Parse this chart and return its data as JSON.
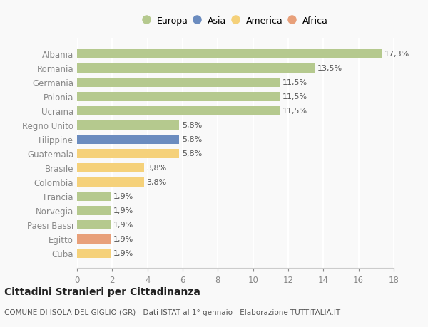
{
  "categories": [
    "Albania",
    "Romania",
    "Germania",
    "Polonia",
    "Ucraina",
    "Regno Unito",
    "Filippine",
    "Guatemala",
    "Brasile",
    "Colombia",
    "Francia",
    "Norvegia",
    "Paesi Bassi",
    "Egitto",
    "Cuba"
  ],
  "values": [
    17.3,
    13.5,
    11.5,
    11.5,
    11.5,
    5.8,
    5.8,
    5.8,
    3.8,
    3.8,
    1.9,
    1.9,
    1.9,
    1.9,
    1.9
  ],
  "labels": [
    "17,3%",
    "13,5%",
    "11,5%",
    "11,5%",
    "11,5%",
    "5,8%",
    "5,8%",
    "5,8%",
    "3,8%",
    "3,8%",
    "1,9%",
    "1,9%",
    "1,9%",
    "1,9%",
    "1,9%"
  ],
  "continent": [
    "Europa",
    "Europa",
    "Europa",
    "Europa",
    "Europa",
    "Europa",
    "Asia",
    "America",
    "America",
    "America",
    "Europa",
    "Europa",
    "Europa",
    "Africa",
    "America"
  ],
  "colors": {
    "Europa": "#b5c98e",
    "Asia": "#6b8cbf",
    "America": "#f5d17a",
    "Africa": "#e8a07a"
  },
  "legend_order": [
    "Europa",
    "Asia",
    "America",
    "Africa"
  ],
  "title": "Cittadini Stranieri per Cittadinanza",
  "subtitle": "COMUNE DI ISOLA DEL GIGLIO (GR) - Dati ISTAT al 1° gennaio - Elaborazione TUTTITALIA.IT",
  "xlim": [
    0,
    18
  ],
  "xticks": [
    0,
    2,
    4,
    6,
    8,
    10,
    12,
    14,
    16,
    18
  ],
  "background_color": "#f9f9f9",
  "grid_color": "#ffffff",
  "bar_height": 0.65
}
